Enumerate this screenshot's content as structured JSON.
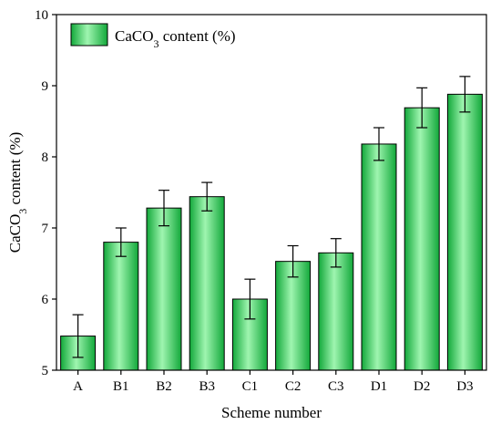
{
  "chart_data": {
    "type": "bar",
    "categories": [
      "A",
      "B1",
      "B2",
      "B3",
      "C1",
      "C2",
      "C3",
      "D1",
      "D2",
      "D3"
    ],
    "series": [
      {
        "name": "CaCO3 content (%)",
        "values": [
          5.48,
          6.8,
          7.28,
          7.44,
          6.0,
          6.53,
          6.65,
          8.18,
          8.69,
          8.88
        ],
        "error": [
          0.3,
          0.2,
          0.25,
          0.2,
          0.28,
          0.22,
          0.2,
          0.23,
          0.28,
          0.25
        ]
      }
    ],
    "title": "",
    "xlabel": "Scheme number",
    "ylabel": "CaCO3 content (%)",
    "ylim": [
      5,
      10
    ],
    "yticks": [
      5,
      6,
      7,
      8,
      9,
      10
    ],
    "grid": false,
    "legend_position": "top-left",
    "bar_color": "#1fbf4a",
    "bar_highlight_color": "#9ff5b0",
    "bar_edge_color": "#000000",
    "error_bar_color": "#000000"
  },
  "legend": {
    "label_main": "CaCO",
    "label_sub": "3",
    "label_rest": " content (%)"
  },
  "axes": {
    "ylabel_main": "CaCO",
    "ylabel_sub": "3",
    "ylabel_rest": " content (%)",
    "xlabel": "Scheme number"
  }
}
